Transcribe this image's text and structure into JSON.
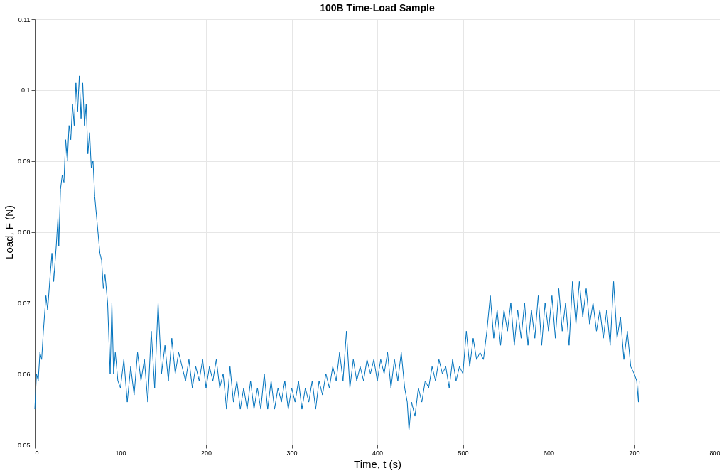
{
  "chart_data": {
    "type": "line",
    "title": "100B Time-Load Sample",
    "xlabel": "Time, t (s)",
    "ylabel": "Load, F (N)",
    "xlim": [
      0,
      800
    ],
    "xticks": [
      0,
      100,
      200,
      300,
      400,
      500,
      600,
      700,
      800
    ],
    "ylim": [
      0.05,
      0.11
    ],
    "yticks": [
      0.05,
      0.06,
      0.07,
      0.08,
      0.09,
      0.1,
      0.11
    ],
    "grid": true,
    "line_style": "solid",
    "series": [
      {
        "color": "#0072bd",
        "x": [
          0,
          2,
          4,
          6,
          8,
          10,
          13,
          15,
          18,
          20,
          22,
          25,
          27,
          28,
          30,
          32,
          34,
          36,
          38,
          40,
          42,
          44,
          46,
          48,
          50,
          52,
          54,
          56,
          58,
          60,
          62,
          64,
          66,
          68,
          70,
          73,
          76,
          78,
          80,
          82,
          85,
          88,
          90,
          92,
          94,
          97,
          100,
          104,
          108,
          112,
          116,
          120,
          124,
          128,
          132,
          136,
          140,
          144,
          148,
          152,
          156,
          160,
          164,
          168,
          172,
          176,
          180,
          184,
          188,
          192,
          196,
          200,
          204,
          208,
          212,
          216,
          220,
          224,
          228,
          232,
          236,
          240,
          244,
          248,
          252,
          256,
          260,
          264,
          268,
          272,
          276,
          280,
          284,
          288,
          292,
          296,
          300,
          304,
          308,
          312,
          316,
          320,
          324,
          328,
          332,
          336,
          340,
          344,
          348,
          352,
          356,
          360,
          364,
          368,
          372,
          376,
          380,
          384,
          388,
          392,
          396,
          400,
          404,
          408,
          412,
          416,
          420,
          424,
          428,
          432,
          435,
          437,
          440,
          444,
          448,
          452,
          456,
          460,
          464,
          468,
          472,
          476,
          480,
          484,
          488,
          492,
          496,
          500,
          504,
          508,
          512,
          516,
          520,
          524,
          528,
          532,
          536,
          540,
          544,
          548,
          552,
          556,
          560,
          564,
          568,
          572,
          576,
          580,
          584,
          588,
          592,
          596,
          600,
          604,
          608,
          612,
          616,
          620,
          624,
          628,
          632,
          636,
          640,
          644,
          648,
          652,
          656,
          660,
          664,
          668,
          672,
          676,
          680,
          684,
          688,
          692,
          696,
          700,
          703,
          705,
          706
        ],
        "values": [
          0.055,
          0.06,
          0.059,
          0.063,
          0.062,
          0.066,
          0.071,
          0.069,
          0.074,
          0.077,
          0.073,
          0.078,
          0.082,
          0.078,
          0.086,
          0.088,
          0.087,
          0.093,
          0.09,
          0.095,
          0.093,
          0.098,
          0.095,
          0.101,
          0.097,
          0.102,
          0.096,
          0.101,
          0.095,
          0.098,
          0.091,
          0.094,
          0.089,
          0.09,
          0.085,
          0.081,
          0.077,
          0.076,
          0.072,
          0.074,
          0.07,
          0.06,
          0.07,
          0.06,
          0.063,
          0.059,
          0.058,
          0.062,
          0.056,
          0.061,
          0.057,
          0.063,
          0.059,
          0.062,
          0.056,
          0.066,
          0.058,
          0.07,
          0.06,
          0.064,
          0.059,
          0.065,
          0.06,
          0.063,
          0.061,
          0.059,
          0.062,
          0.058,
          0.061,
          0.059,
          0.062,
          0.058,
          0.061,
          0.059,
          0.062,
          0.058,
          0.06,
          0.055,
          0.061,
          0.056,
          0.059,
          0.055,
          0.058,
          0.055,
          0.059,
          0.055,
          0.058,
          0.055,
          0.06,
          0.055,
          0.059,
          0.055,
          0.058,
          0.056,
          0.059,
          0.055,
          0.058,
          0.056,
          0.059,
          0.055,
          0.058,
          0.056,
          0.059,
          0.055,
          0.059,
          0.057,
          0.06,
          0.058,
          0.061,
          0.059,
          0.063,
          0.059,
          0.066,
          0.058,
          0.062,
          0.059,
          0.061,
          0.059,
          0.062,
          0.06,
          0.062,
          0.059,
          0.062,
          0.06,
          0.063,
          0.058,
          0.062,
          0.059,
          0.063,
          0.058,
          0.056,
          0.052,
          0.056,
          0.054,
          0.058,
          0.056,
          0.059,
          0.058,
          0.061,
          0.059,
          0.062,
          0.06,
          0.061,
          0.058,
          0.062,
          0.059,
          0.061,
          0.06,
          0.066,
          0.061,
          0.065,
          0.062,
          0.063,
          0.062,
          0.066,
          0.071,
          0.065,
          0.069,
          0.064,
          0.069,
          0.066,
          0.07,
          0.064,
          0.069,
          0.065,
          0.07,
          0.064,
          0.069,
          0.065,
          0.071,
          0.064,
          0.07,
          0.066,
          0.071,
          0.065,
          0.072,
          0.066,
          0.07,
          0.064,
          0.073,
          0.067,
          0.073,
          0.068,
          0.072,
          0.067,
          0.07,
          0.066,
          0.069,
          0.065,
          0.069,
          0.064,
          0.073,
          0.065,
          0.068,
          0.062,
          0.066,
          0.061,
          0.06,
          0.059,
          0.056,
          0.059
        ]
      }
    ]
  }
}
